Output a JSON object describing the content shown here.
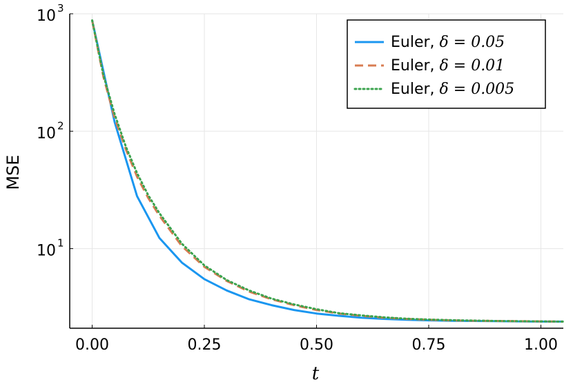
{
  "chart_data": {
    "type": "line",
    "xlabel": "t",
    "ylabel": "MSE",
    "xlim": [
      -0.05,
      1.05
    ],
    "ylim": [
      2.1,
      1000
    ],
    "yscale": "log",
    "xticks": [
      {
        "value": 0.0,
        "label": "0.00"
      },
      {
        "value": 0.25,
        "label": "0.25"
      },
      {
        "value": 0.5,
        "label": "0.50"
      },
      {
        "value": 0.75,
        "label": "0.75"
      },
      {
        "value": 1.0,
        "label": "1.00"
      }
    ],
    "yticks": [
      {
        "value": 10,
        "base": "10",
        "exp": "1"
      },
      {
        "value": 100,
        "base": "10",
        "exp": "2"
      },
      {
        "value": 1000,
        "base": "10",
        "exp": "3"
      }
    ],
    "grid": true,
    "legend_position": "top-right",
    "series": [
      {
        "name": "Euler, ",
        "math": "δ = 0.05",
        "color": "#1a96f0",
        "style": "solid",
        "x": [
          0.0,
          0.05,
          0.1,
          0.15,
          0.2,
          0.25,
          0.3,
          0.35,
          0.4,
          0.45,
          0.5,
          0.55,
          0.6,
          0.65,
          0.7,
          0.75,
          0.8,
          0.85,
          0.9,
          0.95,
          1.0,
          1.05
        ],
        "y": [
          880,
          120,
          28,
          12.3,
          7.6,
          5.5,
          4.4,
          3.7,
          3.3,
          3.0,
          2.8,
          2.68,
          2.58,
          2.52,
          2.48,
          2.45,
          2.43,
          2.42,
          2.41,
          2.4,
          2.39,
          2.39
        ]
      },
      {
        "name": "Euler, ",
        "math": "δ = 0.01",
        "color": "#d87c52",
        "style": "dashed",
        "x": [
          0.0,
          0.025,
          0.05,
          0.075,
          0.1,
          0.125,
          0.15,
          0.2,
          0.25,
          0.3,
          0.35,
          0.4,
          0.45,
          0.5,
          0.55,
          0.6,
          0.65,
          0.7,
          0.75,
          0.8,
          0.85,
          0.9,
          0.95,
          1.0,
          1.05
        ],
        "y": [
          880,
          290,
          130,
          70,
          41,
          27,
          19,
          10.5,
          7.0,
          5.3,
          4.3,
          3.7,
          3.3,
          3.0,
          2.8,
          2.68,
          2.58,
          2.52,
          2.48,
          2.45,
          2.43,
          2.42,
          2.41,
          2.4,
          2.39
        ]
      },
      {
        "name": "Euler, ",
        "math": "δ = 0.005",
        "color": "#3ba34e",
        "style": "dotted",
        "x": [
          0.0,
          0.025,
          0.05,
          0.075,
          0.1,
          0.125,
          0.15,
          0.2,
          0.25,
          0.3,
          0.35,
          0.4,
          0.45,
          0.5,
          0.55,
          0.6,
          0.65,
          0.7,
          0.75,
          0.8,
          0.85,
          0.9,
          0.95,
          1.0,
          1.05
        ],
        "y": [
          880,
          300,
          140,
          74,
          44,
          28.5,
          20,
          11,
          7.2,
          5.4,
          4.4,
          3.75,
          3.35,
          3.05,
          2.82,
          2.7,
          2.6,
          2.53,
          2.49,
          2.46,
          2.44,
          2.42,
          2.41,
          2.4,
          2.39
        ]
      }
    ]
  }
}
